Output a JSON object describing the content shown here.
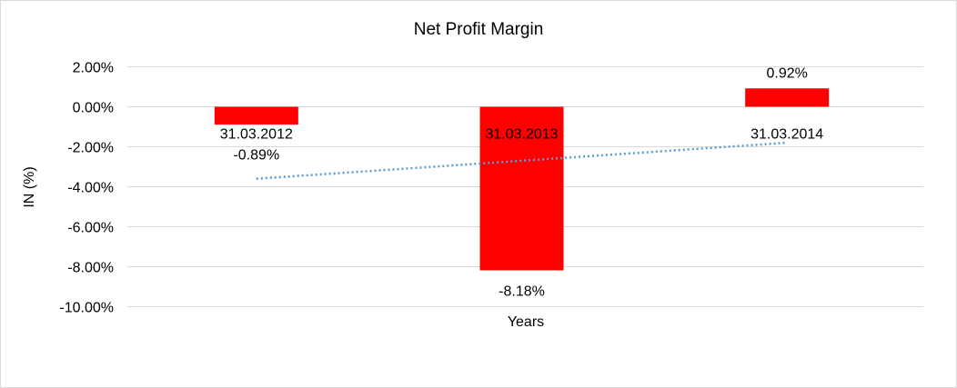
{
  "chart_data": {
    "type": "bar",
    "title": "Net Profit Margin",
    "xlabel": "Years",
    "ylabel": "IN (%)",
    "categories": [
      "31.03.2012",
      "31.03.2013",
      "31.03.2014"
    ],
    "values": [
      -0.89,
      -8.18,
      0.92
    ],
    "data_labels": [
      "-0.89%",
      "-8.18%",
      "0.92%"
    ],
    "ylim": [
      -10,
      2
    ],
    "yticks": [
      2,
      0,
      -2,
      -4,
      -6,
      -8,
      -10
    ],
    "ytick_labels": [
      "2.00%",
      "0.00%",
      "-2.00%",
      "-4.00%",
      "-6.00%",
      "-8.00%",
      "-10.00%"
    ],
    "grid": true,
    "bar_color": "#ff0000",
    "trendline": {
      "type": "linear",
      "color": "#5b9bd5",
      "style": "dotted",
      "start": -3.6,
      "end": -1.8
    }
  }
}
